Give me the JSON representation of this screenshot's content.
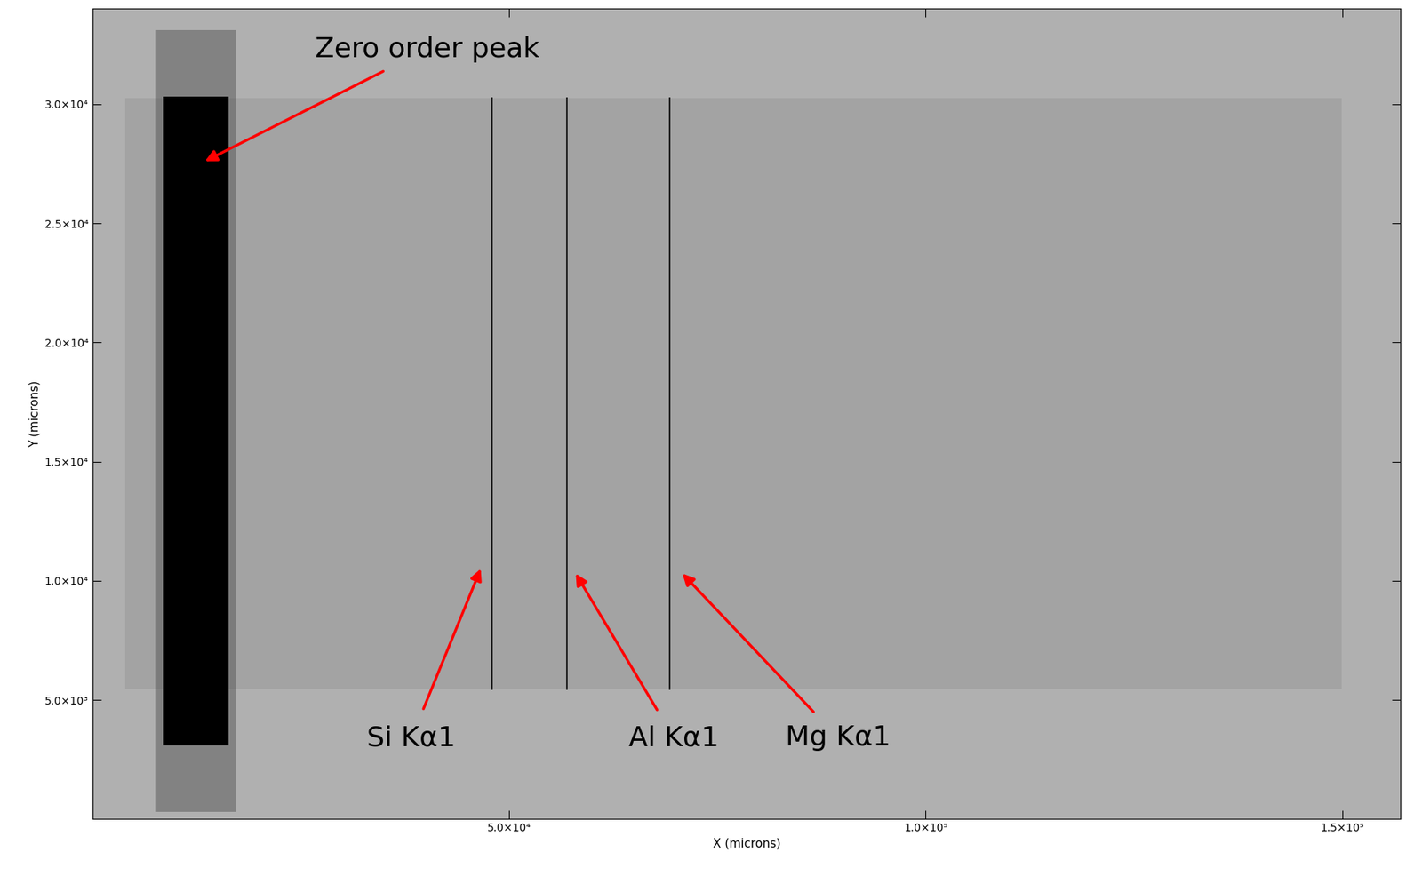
{
  "chart_data": {
    "type": "image",
    "xlabel": "X (microns)",
    "ylabel": "Y (microns)",
    "xlim": [
      0,
      157000
    ],
    "ylim": [
      0,
      34000
    ],
    "xticks": [
      {
        "value": 50000,
        "label": "5.0×10⁴"
      },
      {
        "value": 100000,
        "label": "1.0×10⁵"
      },
      {
        "value": 150000,
        "label": "1.5×10⁵"
      }
    ],
    "yticks": [
      {
        "value": 5000,
        "label": "5.0×10³"
      },
      {
        "value": 10000,
        "label": "1.0×10⁴"
      },
      {
        "value": 15000,
        "label": "1.5×10⁴"
      },
      {
        "value": 20000,
        "label": "2.0×10⁴"
      },
      {
        "value": 25000,
        "label": "2.5×10⁴"
      },
      {
        "value": 30000,
        "label": "3.0×10⁴"
      }
    ],
    "zero_order": {
      "x": [
        8500,
        16300
      ],
      "y": [
        3100,
        30300
      ]
    },
    "lines": [
      {
        "name": "Si Kα1",
        "x": 48000
      },
      {
        "name": "Al Kα1",
        "x": 56900
      },
      {
        "name": "Mg Kα1",
        "x": 69300
      }
    ],
    "annotations": [
      {
        "text": "Zero order peak",
        "x": 13500,
        "y": 27600
      },
      {
        "text": "Si Kα1",
        "x": 46600,
        "y": 10500
      },
      {
        "text": "Al Kα1",
        "x": 58000,
        "y": 10300
      },
      {
        "text": "Mg Kα1",
        "x": 70800,
        "y": 10300
      }
    ],
    "color": "#b0b0b0"
  }
}
